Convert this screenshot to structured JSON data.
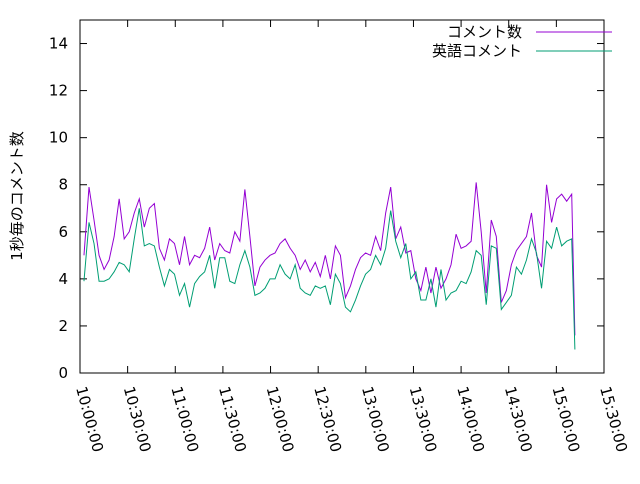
{
  "chart_data": {
    "type": "line",
    "ylabel": "1秒毎のコメント数",
    "x": [
      36150,
      36340,
      36530,
      36720,
      36910,
      37100,
      37290,
      37480,
      37670,
      37860,
      38050,
      38240,
      38430,
      38620,
      38810,
      39000,
      39190,
      39380,
      39570,
      39760,
      39950,
      40140,
      40330,
      40520,
      40710,
      40900,
      41090,
      41280,
      41470,
      41660,
      41850,
      42040,
      42230,
      42420,
      42610,
      42800,
      42990,
      43180,
      43370,
      43560,
      43750,
      43940,
      44130,
      44320,
      44510,
      44700,
      44890,
      45080,
      45270,
      45460,
      45650,
      45840,
      46030,
      46220,
      46410,
      46600,
      46790,
      46980,
      47170,
      47360,
      47550,
      47740,
      47930,
      48120,
      48310,
      48500,
      48690,
      48880,
      49070,
      49260,
      49450,
      49640,
      49830,
      50020,
      50210,
      50400,
      50590,
      50780,
      50970,
      51160,
      51350,
      51540,
      51730,
      51920,
      52110,
      52300,
      52490,
      52680,
      52870,
      53060,
      53250,
      53440,
      53630,
      53820,
      54010,
      54200,
      54390,
      54580,
      54700
    ],
    "series": [
      {
        "name": "コメント数",
        "color": "#9400d3",
        "values": [
          5.0,
          7.9,
          6.5,
          5.0,
          4.4,
          4.8,
          5.8,
          7.4,
          5.7,
          6.0,
          6.8,
          7.4,
          6.2,
          7.0,
          7.2,
          5.3,
          4.8,
          5.7,
          5.5,
          4.6,
          5.8,
          4.6,
          5.0,
          4.9,
          5.3,
          6.2,
          4.8,
          5.5,
          5.2,
          5.1,
          6.0,
          5.6,
          7.8,
          5.8,
          3.7,
          4.5,
          4.8,
          5.0,
          5.1,
          5.5,
          5.7,
          5.3,
          5.0,
          4.4,
          4.8,
          4.3,
          4.7,
          4.1,
          5.0,
          4.0,
          5.4,
          5.0,
          3.2,
          3.7,
          4.4,
          4.9,
          5.1,
          5.0,
          5.8,
          5.2,
          6.8,
          7.9,
          5.7,
          6.2,
          5.1,
          5.2,
          4.0,
          3.5,
          4.5,
          3.4,
          4.5,
          3.6,
          4.0,
          4.6,
          5.9,
          5.3,
          5.4,
          5.6,
          8.1,
          6.0,
          3.4,
          6.5,
          5.8,
          3.0,
          3.5,
          4.6,
          5.2,
          5.5,
          5.8,
          6.8,
          5.0,
          4.5,
          8.0,
          6.4,
          7.4,
          7.6,
          7.3,
          7.6,
          1.6
        ]
      },
      {
        "name": "英語コメント",
        "color": "#009e73",
        "values": [
          3.9,
          6.4,
          5.5,
          3.9,
          3.9,
          4.0,
          4.3,
          4.7,
          4.6,
          4.3,
          5.7,
          7.0,
          5.4,
          5.5,
          5.4,
          4.5,
          3.7,
          4.4,
          4.2,
          3.3,
          3.8,
          2.8,
          3.8,
          4.1,
          4.3,
          5.0,
          3.6,
          4.9,
          4.9,
          3.9,
          3.8,
          4.6,
          5.2,
          4.5,
          3.3,
          3.4,
          3.6,
          4.0,
          4.0,
          4.6,
          4.2,
          4.0,
          4.6,
          3.6,
          3.4,
          3.3,
          3.7,
          3.6,
          3.7,
          2.9,
          4.2,
          3.8,
          2.8,
          2.6,
          3.1,
          3.7,
          4.2,
          4.4,
          5.0,
          4.6,
          5.3,
          6.9,
          5.6,
          4.9,
          5.5,
          4.0,
          4.3,
          3.1,
          3.1,
          4.0,
          2.8,
          4.4,
          3.1,
          3.4,
          3.5,
          3.9,
          3.8,
          4.3,
          5.2,
          5.0,
          2.9,
          5.4,
          5.3,
          2.7,
          3.0,
          3.3,
          4.5,
          4.2,
          4.8,
          5.7,
          5.1,
          3.6,
          5.6,
          5.3,
          6.2,
          5.4,
          5.6,
          5.7,
          1.0
        ]
      }
    ],
    "xlim": [
      36000,
      55800
    ],
    "xticks": [
      {
        "value": 36000,
        "label": "10:00:00"
      },
      {
        "value": 37800,
        "label": "10:30:00"
      },
      {
        "value": 39600,
        "label": "11:00:00"
      },
      {
        "value": 41400,
        "label": "11:30:00"
      },
      {
        "value": 43200,
        "label": "12:00:00"
      },
      {
        "value": 45000,
        "label": "12:30:00"
      },
      {
        "value": 46800,
        "label": "13:00:00"
      },
      {
        "value": 48600,
        "label": "13:30:00"
      },
      {
        "value": 50400,
        "label": "14:00:00"
      },
      {
        "value": 52200,
        "label": "14:30:00"
      },
      {
        "value": 54000,
        "label": "15:00:00"
      },
      {
        "value": 55800,
        "label": "15:30:00"
      }
    ],
    "ylim": [
      0,
      15
    ],
    "yticks": [
      0,
      2,
      4,
      6,
      8,
      10,
      12,
      14
    ],
    "legend": "top-right"
  }
}
